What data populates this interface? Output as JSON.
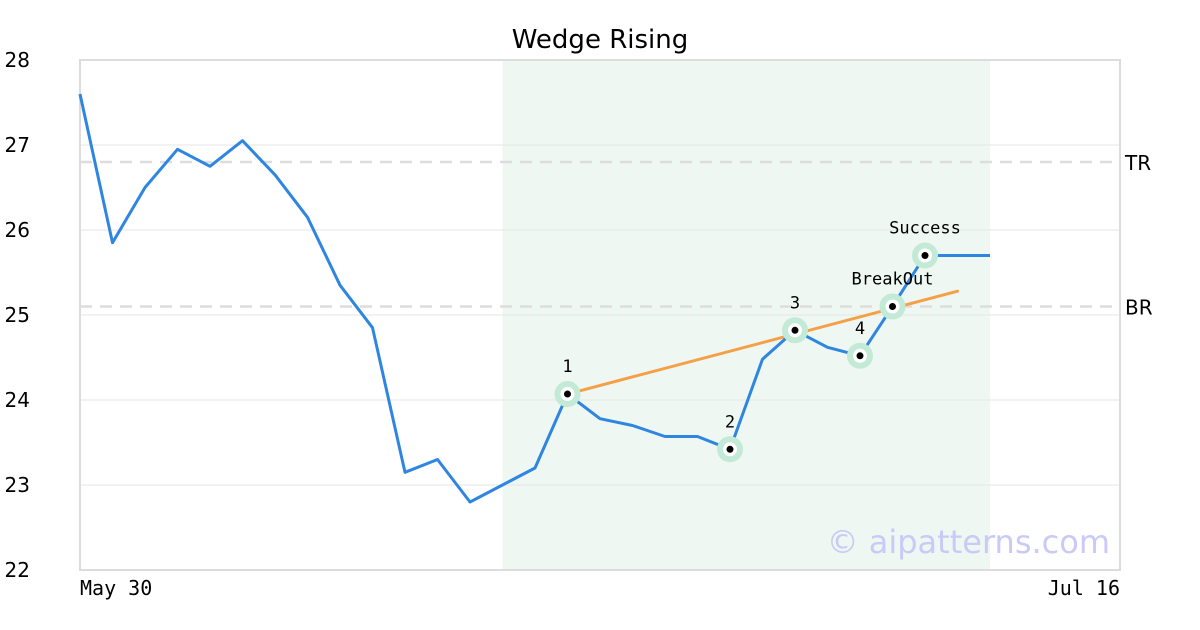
{
  "chart_data": {
    "type": "line",
    "title": "Wedge Rising",
    "x_labels": [
      "May 30",
      "Jul 16"
    ],
    "ylim": [
      22,
      28
    ],
    "yticks": [
      22,
      23,
      24,
      25,
      26,
      27,
      28
    ],
    "grid": true,
    "series": [
      {
        "values": [
          27.6,
          25.85,
          26.5,
          26.95,
          26.75,
          27.05,
          26.65,
          26.15,
          25.35,
          24.85,
          23.15,
          23.3,
          22.8,
          23.0,
          23.2,
          24.07,
          23.78,
          23.7,
          23.57,
          23.57,
          23.42,
          24.48,
          24.82,
          24.62,
          24.52,
          25.1,
          25.7,
          25.7,
          25.7
        ]
      }
    ],
    "trendline": {
      "from_index": 15,
      "to_index": 27,
      "from_value": 24.07,
      "to_value": 25.28,
      "color": "#f5a047"
    },
    "pattern_region": {
      "from_index": 13,
      "to_index": 28,
      "color": "#eef7f2"
    },
    "horizontal_lines": [
      {
        "label": "TR",
        "value": 26.8
      },
      {
        "label": "BR",
        "value": 25.1
      }
    ],
    "pattern_points": [
      {
        "label": "1",
        "index": 15,
        "value": 24.07
      },
      {
        "label": "2",
        "index": 20,
        "value": 23.42
      },
      {
        "label": "3",
        "index": 22,
        "value": 24.82
      },
      {
        "label": "4",
        "index": 24,
        "value": 24.52
      },
      {
        "label": "BreakOut",
        "index": 25,
        "value": 25.1
      },
      {
        "label": "Success",
        "index": 26,
        "value": 25.7
      }
    ],
    "line_color": "#2f86e0",
    "marker_color": "#c2ead6"
  },
  "watermark": "© aipatterns.com"
}
